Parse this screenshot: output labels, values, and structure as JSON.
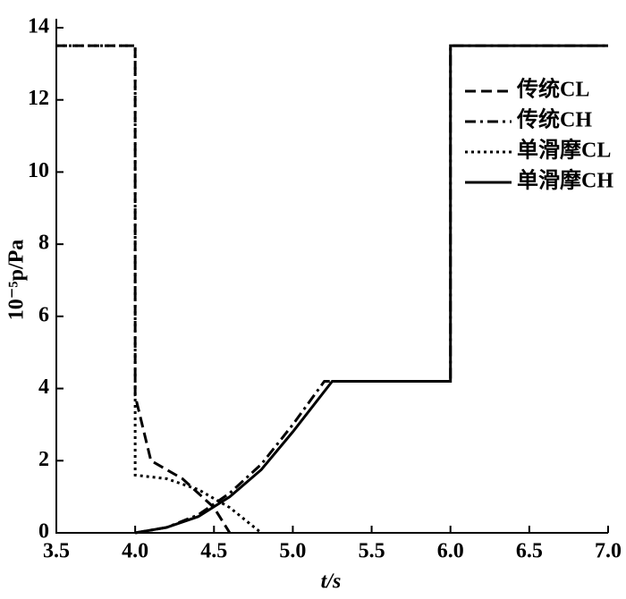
{
  "chart_data": {
    "type": "line",
    "xlabel": "t/s",
    "ylabel": "10⁻⁵p/Pa",
    "xlim": [
      3.5,
      7.0
    ],
    "xticks": [
      3.5,
      {
        "value": 4,
        "label": "4.0"
      },
      4.5,
      {
        "value": 5,
        "label": "5.0"
      },
      5.5,
      {
        "value": 6,
        "label": "6.0"
      },
      6.5,
      {
        "value": 7,
        "label": "7.0"
      }
    ],
    "ylim": [
      0,
      14
    ],
    "yticks": [
      0,
      2,
      4,
      6,
      8,
      10,
      12,
      14
    ],
    "legend": "upper right",
    "series": [
      {
        "name": "传统CL",
        "color": "#000000",
        "dash": "dashed",
        "x": [
          3.5,
          4.0,
          4.0,
          4.1,
          4.3,
          4.5,
          4.6
        ],
        "values": [
          13.5,
          13.5,
          3.8,
          2.0,
          1.5,
          0.7,
          0
        ]
      },
      {
        "name": "传统CH",
        "color": "#000000",
        "dash": "dashdot",
        "x": [
          4.0,
          4.2,
          4.4,
          4.6,
          4.8,
          5.0,
          5.2,
          6.0,
          6.0,
          7.0
        ],
        "values": [
          0,
          0.15,
          0.5,
          1.1,
          1.9,
          3.0,
          4.2,
          4.2,
          13.5,
          13.5
        ]
      },
      {
        "name": "单滑摩CL",
        "color": "#000000",
        "dash": "dotted",
        "x": [
          3.5,
          4.0,
          4.0,
          4.2,
          4.4,
          4.6,
          4.8
        ],
        "values": [
          13.5,
          13.5,
          1.6,
          1.5,
          1.2,
          0.7,
          0
        ]
      },
      {
        "name": "单滑摩CH",
        "color": "#000000",
        "dash": "solid",
        "x": [
          4.0,
          4.2,
          4.4,
          4.6,
          4.8,
          5.0,
          5.25,
          6.0,
          6.0,
          7.0
        ],
        "values": [
          0,
          0.15,
          0.45,
          1.0,
          1.75,
          2.8,
          4.2,
          4.2,
          13.5,
          13.5
        ]
      }
    ]
  }
}
